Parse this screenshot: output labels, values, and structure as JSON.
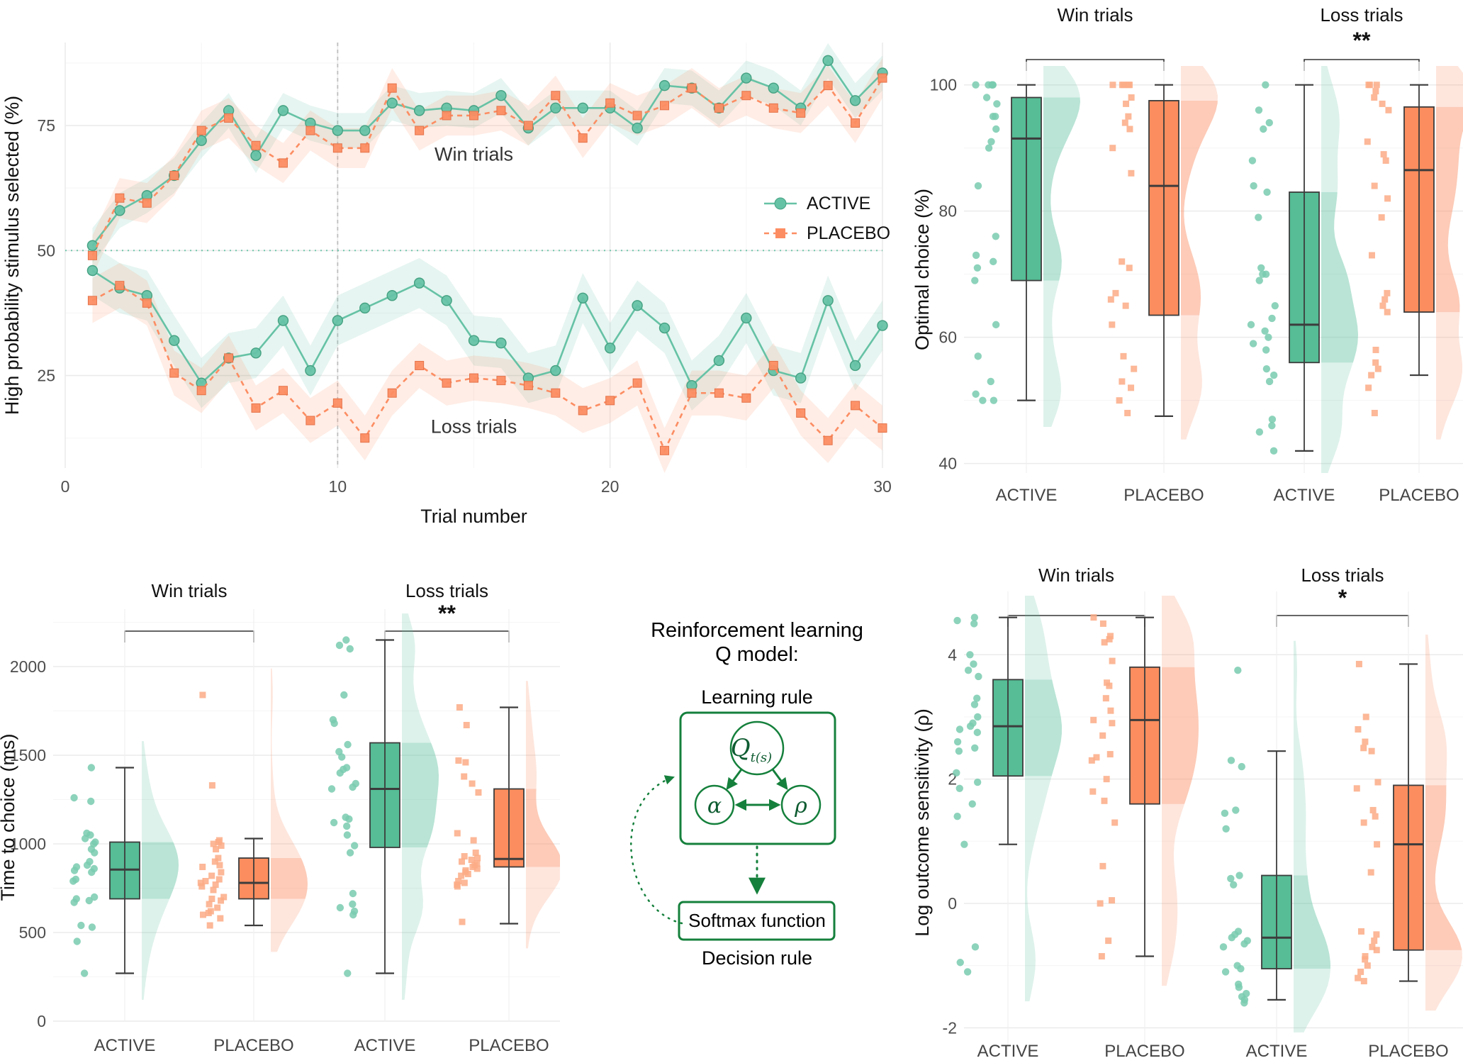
{
  "figure": {
    "colors": {
      "active": "#66C2A5",
      "active_box": "#56BD96",
      "active_dot": "#79CBAF",
      "active_stroke": "#45A182",
      "placebo": "#FC8D62",
      "placebo_box": "#FB8D5E",
      "placebo_dot": "#FCAB86",
      "placebo_stroke": "#E5734A",
      "box_stroke": "#3C3C3C",
      "grid_major": "#EBEBEB",
      "grid_minor": "#F5F5F5",
      "grid_cat": "#F0F0F0",
      "ref_vertical": "#BFBFBF",
      "diagram_green": "#15803C"
    },
    "legend": {
      "active_label": "ACTIVE",
      "placebo_label": "PLACEBO"
    }
  },
  "chart_data": [
    {
      "id": "learning_curve",
      "type": "line",
      "xlabel": "Trial number",
      "ylabel": "High probability stimulus selected (%)",
      "xticks": [
        0,
        10,
        20,
        30
      ],
      "yticks": [
        25,
        50,
        75
      ],
      "xlim": [
        0,
        30
      ],
      "ylim": [
        6.5,
        91.6
      ],
      "grid": true,
      "legend_position": "right-center",
      "reference_lines": {
        "horizontal_y": 50,
        "vertical_x": 10
      },
      "annotations": [
        {
          "text": "Win trials",
          "x": 15,
          "y": 68
        },
        {
          "text": "Loss trials",
          "x": 15,
          "y": 13.5
        }
      ],
      "x": [
        1,
        2,
        3,
        4,
        5,
        6,
        7,
        8,
        9,
        10,
        11,
        12,
        13,
        14,
        15,
        16,
        17,
        18,
        19,
        20,
        21,
        22,
        23,
        24,
        25,
        26,
        27,
        28,
        29,
        30
      ],
      "series": [
        {
          "name": "ACTIVE",
          "condition": "Win trials",
          "marker": "circle",
          "line": "solid",
          "color_key": "active",
          "band_halfwidth": 3.5,
          "values": [
            51,
            58,
            61,
            65,
            72,
            78,
            69,
            78,
            75.5,
            74,
            74,
            79.5,
            78,
            78.5,
            78,
            81,
            74.5,
            78.5,
            78.5,
            78.5,
            74.5,
            83,
            82.5,
            78.5,
            84.5,
            82.5,
            78.5,
            88,
            80,
            85.5
          ]
        },
        {
          "name": "PLACEBO",
          "condition": "Win trials",
          "marker": "square",
          "line": "dashed",
          "color_key": "placebo",
          "band_halfwidth": 4,
          "values": [
            49,
            60.5,
            59.5,
            65,
            74,
            76.5,
            71,
            67.5,
            74,
            70.5,
            70.5,
            82.5,
            74,
            77,
            77,
            78,
            75,
            81,
            72.5,
            79.5,
            77,
            79,
            82.5,
            78.5,
            81,
            78.5,
            77.5,
            83,
            75.5,
            84.5
          ]
        },
        {
          "name": "ACTIVE",
          "condition": "Loss trials",
          "marker": "circle",
          "line": "solid",
          "color_key": "active",
          "band_halfwidth": 5,
          "values": [
            46,
            42.5,
            41,
            32,
            23.5,
            28.5,
            29.5,
            36,
            26,
            36,
            38.5,
            41,
            43.5,
            40,
            32,
            31.5,
            24.5,
            26,
            40.5,
            30.5,
            39,
            34.5,
            23,
            28,
            36.5,
            26,
            24.5,
            40,
            27,
            35
          ]
        },
        {
          "name": "PLACEBO",
          "condition": "Loss trials",
          "marker": "square",
          "line": "dashed",
          "color_key": "placebo",
          "band_halfwidth": 4.5,
          "values": [
            40,
            43,
            39.5,
            25.5,
            22,
            28.5,
            18.5,
            22,
            16,
            19.5,
            12.5,
            21.5,
            27,
            23.5,
            24.5,
            24,
            23,
            21.5,
            18,
            20,
            23.5,
            10,
            21.5,
            21.5,
            20.5,
            27,
            17.5,
            12,
            19,
            14.5
          ]
        }
      ]
    },
    {
      "id": "optimal_choice",
      "type": "raincloud",
      "ylabel": "Optimal choice (%)",
      "yticks": [
        40,
        60,
        80,
        100
      ],
      "ylim": [
        38.5,
        103
      ],
      "facets": [
        {
          "label": "Win trials",
          "sig": "",
          "groups": [
            {
              "label": "ACTIVE",
              "color_key": "active",
              "marker": "circle",
              "box": {
                "lo": 50,
                "q1": 69,
                "med": 91.5,
                "q3": 98,
                "hi": 100
              },
              "points": [
                100,
                100,
                100,
                100,
                100,
                98,
                97,
                95,
                95,
                93,
                91,
                90,
                84,
                76,
                73,
                72,
                71,
                69,
                62,
                57,
                53,
                51,
                50,
                50
              ]
            },
            {
              "label": "PLACEBO",
              "color_key": "placebo",
              "marker": "square",
              "box": {
                "lo": 47.5,
                "q1": 63.5,
                "med": 84,
                "q3": 97.5,
                "hi": 100
              },
              "points": [
                100,
                100,
                100,
                100,
                100,
                98,
                97,
                95,
                94,
                93,
                90,
                86,
                72,
                71,
                67,
                66,
                65,
                62,
                57,
                55,
                53,
                52,
                50,
                48
              ]
            }
          ]
        },
        {
          "label": "Loss trials",
          "sig": "**",
          "groups": [
            {
              "label": "ACTIVE",
              "color_key": "active",
              "marker": "circle",
              "box": {
                "lo": 42,
                "q1": 56,
                "med": 62,
                "q3": 83,
                "hi": 100
              },
              "points": [
                100,
                96,
                94,
                93,
                88,
                84,
                83,
                79,
                71,
                70,
                70,
                69,
                65,
                63,
                62,
                61,
                60,
                59,
                58,
                55,
                54,
                53,
                47,
                46,
                45,
                42
              ]
            },
            {
              "label": "PLACEBO",
              "color_key": "placebo",
              "marker": "square",
              "box": {
                "lo": 54,
                "q1": 64,
                "med": 86.5,
                "q3": 96.5,
                "hi": 100
              },
              "points": [
                100,
                100,
                100,
                99,
                98,
                97,
                96,
                91,
                89,
                88,
                84,
                82,
                79,
                73,
                67,
                66,
                65,
                64,
                58,
                56,
                55,
                54,
                52,
                48
              ]
            }
          ]
        }
      ]
    },
    {
      "id": "time_to_choice",
      "type": "raincloud",
      "ylabel": "Time to choice (ms)",
      "yticks": [
        0,
        500,
        1000,
        1500,
        2000
      ],
      "ylim": [
        0,
        2300
      ],
      "facets": [
        {
          "label": "Win trials",
          "sig": "",
          "groups": [
            {
              "label": "ACTIVE",
              "color_key": "active",
              "marker": "circle",
              "box": {
                "lo": 270,
                "q1": 690,
                "med": 855,
                "q3": 1010,
                "hi": 1430
              },
              "points": [
                1430,
                1260,
                1240,
                1060,
                1050,
                1030,
                1010,
                1000,
                970,
                950,
                900,
                880,
                870,
                860,
                850,
                840,
                800,
                790,
                700,
                690,
                680,
                670,
                540,
                530,
                450,
                270
              ]
            },
            {
              "label": "PLACEBO",
              "color_key": "placebo",
              "marker": "square",
              "box": {
                "lo": 540,
                "q1": 690,
                "med": 780,
                "q3": 920,
                "hi": 1030
              },
              "points": [
                1840,
                1330,
                1020,
                1010,
                1000,
                990,
                970,
                920,
                900,
                880,
                870,
                840,
                820,
                800,
                790,
                780,
                770,
                760,
                740,
                700,
                690,
                680,
                660,
                640,
                620,
                610,
                600,
                580,
                540
              ]
            }
          ]
        },
        {
          "label": "Loss trials",
          "sig": "**",
          "groups": [
            {
              "label": "ACTIVE",
              "color_key": "active",
              "marker": "circle",
              "box": {
                "lo": 270,
                "q1": 980,
                "med": 1310,
                "q3": 1570,
                "hi": 2150
              },
              "points": [
                2150,
                2120,
                2100,
                1840,
                1700,
                1680,
                1560,
                1520,
                1490,
                1430,
                1420,
                1400,
                1340,
                1320,
                1310,
                1150,
                1140,
                1120,
                1100,
                1050,
                990,
                950,
                720,
                660,
                640,
                620,
                600,
                270
              ]
            },
            {
              "label": "PLACEBO",
              "color_key": "placebo",
              "marker": "square",
              "box": {
                "lo": 550,
                "q1": 870,
                "med": 915,
                "q3": 1310,
                "hi": 1770
              },
              "points": [
                1770,
                1670,
                1470,
                1460,
                1380,
                1340,
                1290,
                1060,
                1020,
                950,
                930,
                920,
                910,
                900,
                890,
                880,
                870,
                860,
                850,
                840,
                830,
                820,
                790,
                780,
                770,
                760,
                560
              ]
            }
          ]
        }
      ]
    },
    {
      "id": "log_outcome_sensitivity",
      "type": "raincloud",
      "ylabel": "Log outcome sensitivity (ρ)",
      "yticks": [
        -2,
        0,
        2,
        4
      ],
      "ylim": [
        -2.35,
        4.95
      ],
      "facets": [
        {
          "label": "Win trials",
          "sig": "",
          "groups": [
            {
              "label": "ACTIVE",
              "color_key": "active",
              "marker": "circle",
              "box": {
                "lo": 0.95,
                "q1": 2.05,
                "med": 2.85,
                "q3": 3.6,
                "hi": 4.6
              },
              "points": [
                4.6,
                4.55,
                4.5,
                4.0,
                3.85,
                3.75,
                3.65,
                3.3,
                3.2,
                3.0,
                2.9,
                2.85,
                2.8,
                2.75,
                2.6,
                2.5,
                2.45,
                2.1,
                1.95,
                1.85,
                1.6,
                1.4,
                0.95,
                -0.7,
                -0.95,
                -1.1
              ]
            },
            {
              "label": "PLACEBO",
              "color_key": "placebo",
              "marker": "square",
              "box": {
                "lo": -0.85,
                "q1": 1.6,
                "med": 2.95,
                "q3": 3.8,
                "hi": 4.6
              },
              "points": [
                4.6,
                4.5,
                4.3,
                4.25,
                4.2,
                3.9,
                3.55,
                3.5,
                3.3,
                3.1,
                2.95,
                2.9,
                2.7,
                2.4,
                2.35,
                2.3,
                2.0,
                1.8,
                1.65,
                1.3,
                0.6,
                0.05,
                0.0,
                -0.6,
                -0.85
              ]
            }
          ]
        },
        {
          "label": "Loss trials",
          "sig": "*",
          "groups": [
            {
              "label": "ACTIVE",
              "color_key": "active",
              "marker": "circle",
              "box": {
                "lo": -1.55,
                "q1": -1.05,
                "med": -0.55,
                "q3": 0.45,
                "hi": 2.45
              },
              "points": [
                3.75,
                2.3,
                2.2,
                1.5,
                1.45,
                1.2,
                0.45,
                0.4,
                0.3,
                -0.45,
                -0.5,
                -0.55,
                -0.6,
                -0.65,
                -0.7,
                -1.0,
                -1.05,
                -1.1,
                -1.3,
                -1.35,
                -1.45,
                -1.5,
                -1.55,
                -1.6
              ]
            },
            {
              "label": "PLACEBO",
              "color_key": "placebo",
              "marker": "square",
              "box": {
                "lo": -1.25,
                "q1": -0.75,
                "med": 0.95,
                "q3": 1.9,
                "hi": 3.85
              },
              "points": [
                3.85,
                3.0,
                2.8,
                2.6,
                2.5,
                2.45,
                1.95,
                1.85,
                1.5,
                1.4,
                1.3,
                0.95,
                0.5,
                -0.45,
                -0.5,
                -0.6,
                -0.7,
                -0.75,
                -0.85,
                -0.9,
                -1.0,
                -1.1,
                -1.2,
                -1.25
              ]
            }
          ]
        }
      ]
    }
  ],
  "diagram": {
    "title_line1": "Reinforcement learning",
    "title_line2": "Q model:",
    "learning_rule_label": "Learning rule",
    "decision_rule_label": "Decision rule",
    "softmax_label": "Softmax function",
    "node_q": "Q",
    "node_q_sub": "t(s)",
    "node_alpha": "α",
    "node_rho": "ρ"
  }
}
